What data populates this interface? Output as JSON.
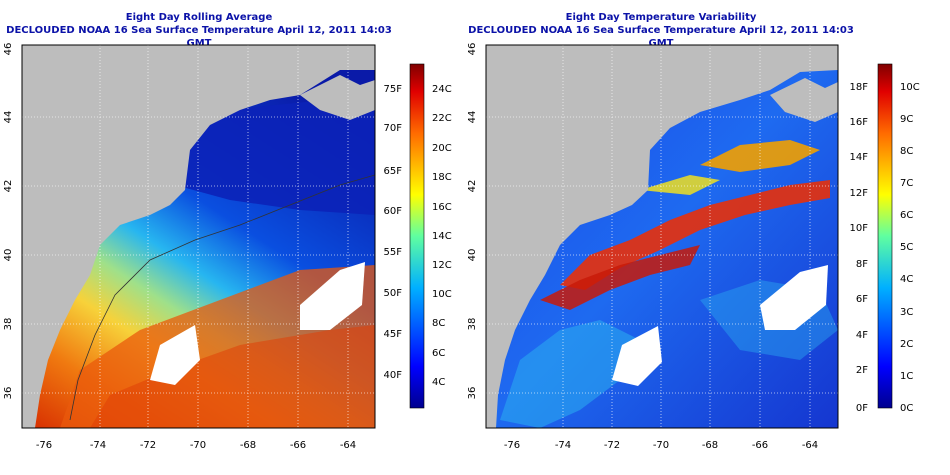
{
  "colors": {
    "land": "#bdbdbd",
    "cloud": "#ffffff",
    "title_text": "#0b12a8"
  },
  "panels": [
    {
      "id": "left",
      "title": "Eight Day Rolling Average",
      "subtitle": "DECLOUDED NOAA 16 Sea Surface Temperature April 12, 2011 14:03 GMT",
      "x_tick_labels": [
        "-76",
        "-74",
        "-72",
        "-70",
        "-68",
        "-66",
        "-64"
      ],
      "y_tick_labels": [
        "36",
        "38",
        "40",
        "42",
        "44",
        "46"
      ],
      "colorbar": {
        "left_labels": [
          "75F",
          "70F",
          "65F",
          "60F",
          "55F",
          "50F",
          "45F",
          "40F"
        ],
        "right_labels": [
          "24C",
          "22C",
          "20C",
          "18C",
          "16C",
          "14C",
          "12C",
          "10C",
          "8C",
          "6C",
          "4C"
        ]
      }
    },
    {
      "id": "right",
      "title": "Eight Day Temperature Variability",
      "subtitle": "DECLOUDED NOAA 16 Sea Surface Temperature April 12, 2011 14:03 GMT",
      "x_tick_labels": [
        "-76",
        "-74",
        "-72",
        "-70",
        "-68",
        "-66",
        "-64"
      ],
      "y_tick_labels": [
        "36",
        "38",
        "40",
        "42",
        "44",
        "46"
      ],
      "colorbar": {
        "left_labels": [
          "18F",
          "16F",
          "14F",
          "12F",
          "10F",
          "8F",
          "6F",
          "4F",
          "2F",
          "0F"
        ],
        "right_labels": [
          "10C",
          "9C",
          "8C",
          "7C",
          "6C",
          "5C",
          "4C",
          "3C",
          "2C",
          "1C",
          "0C"
        ]
      }
    }
  ]
}
